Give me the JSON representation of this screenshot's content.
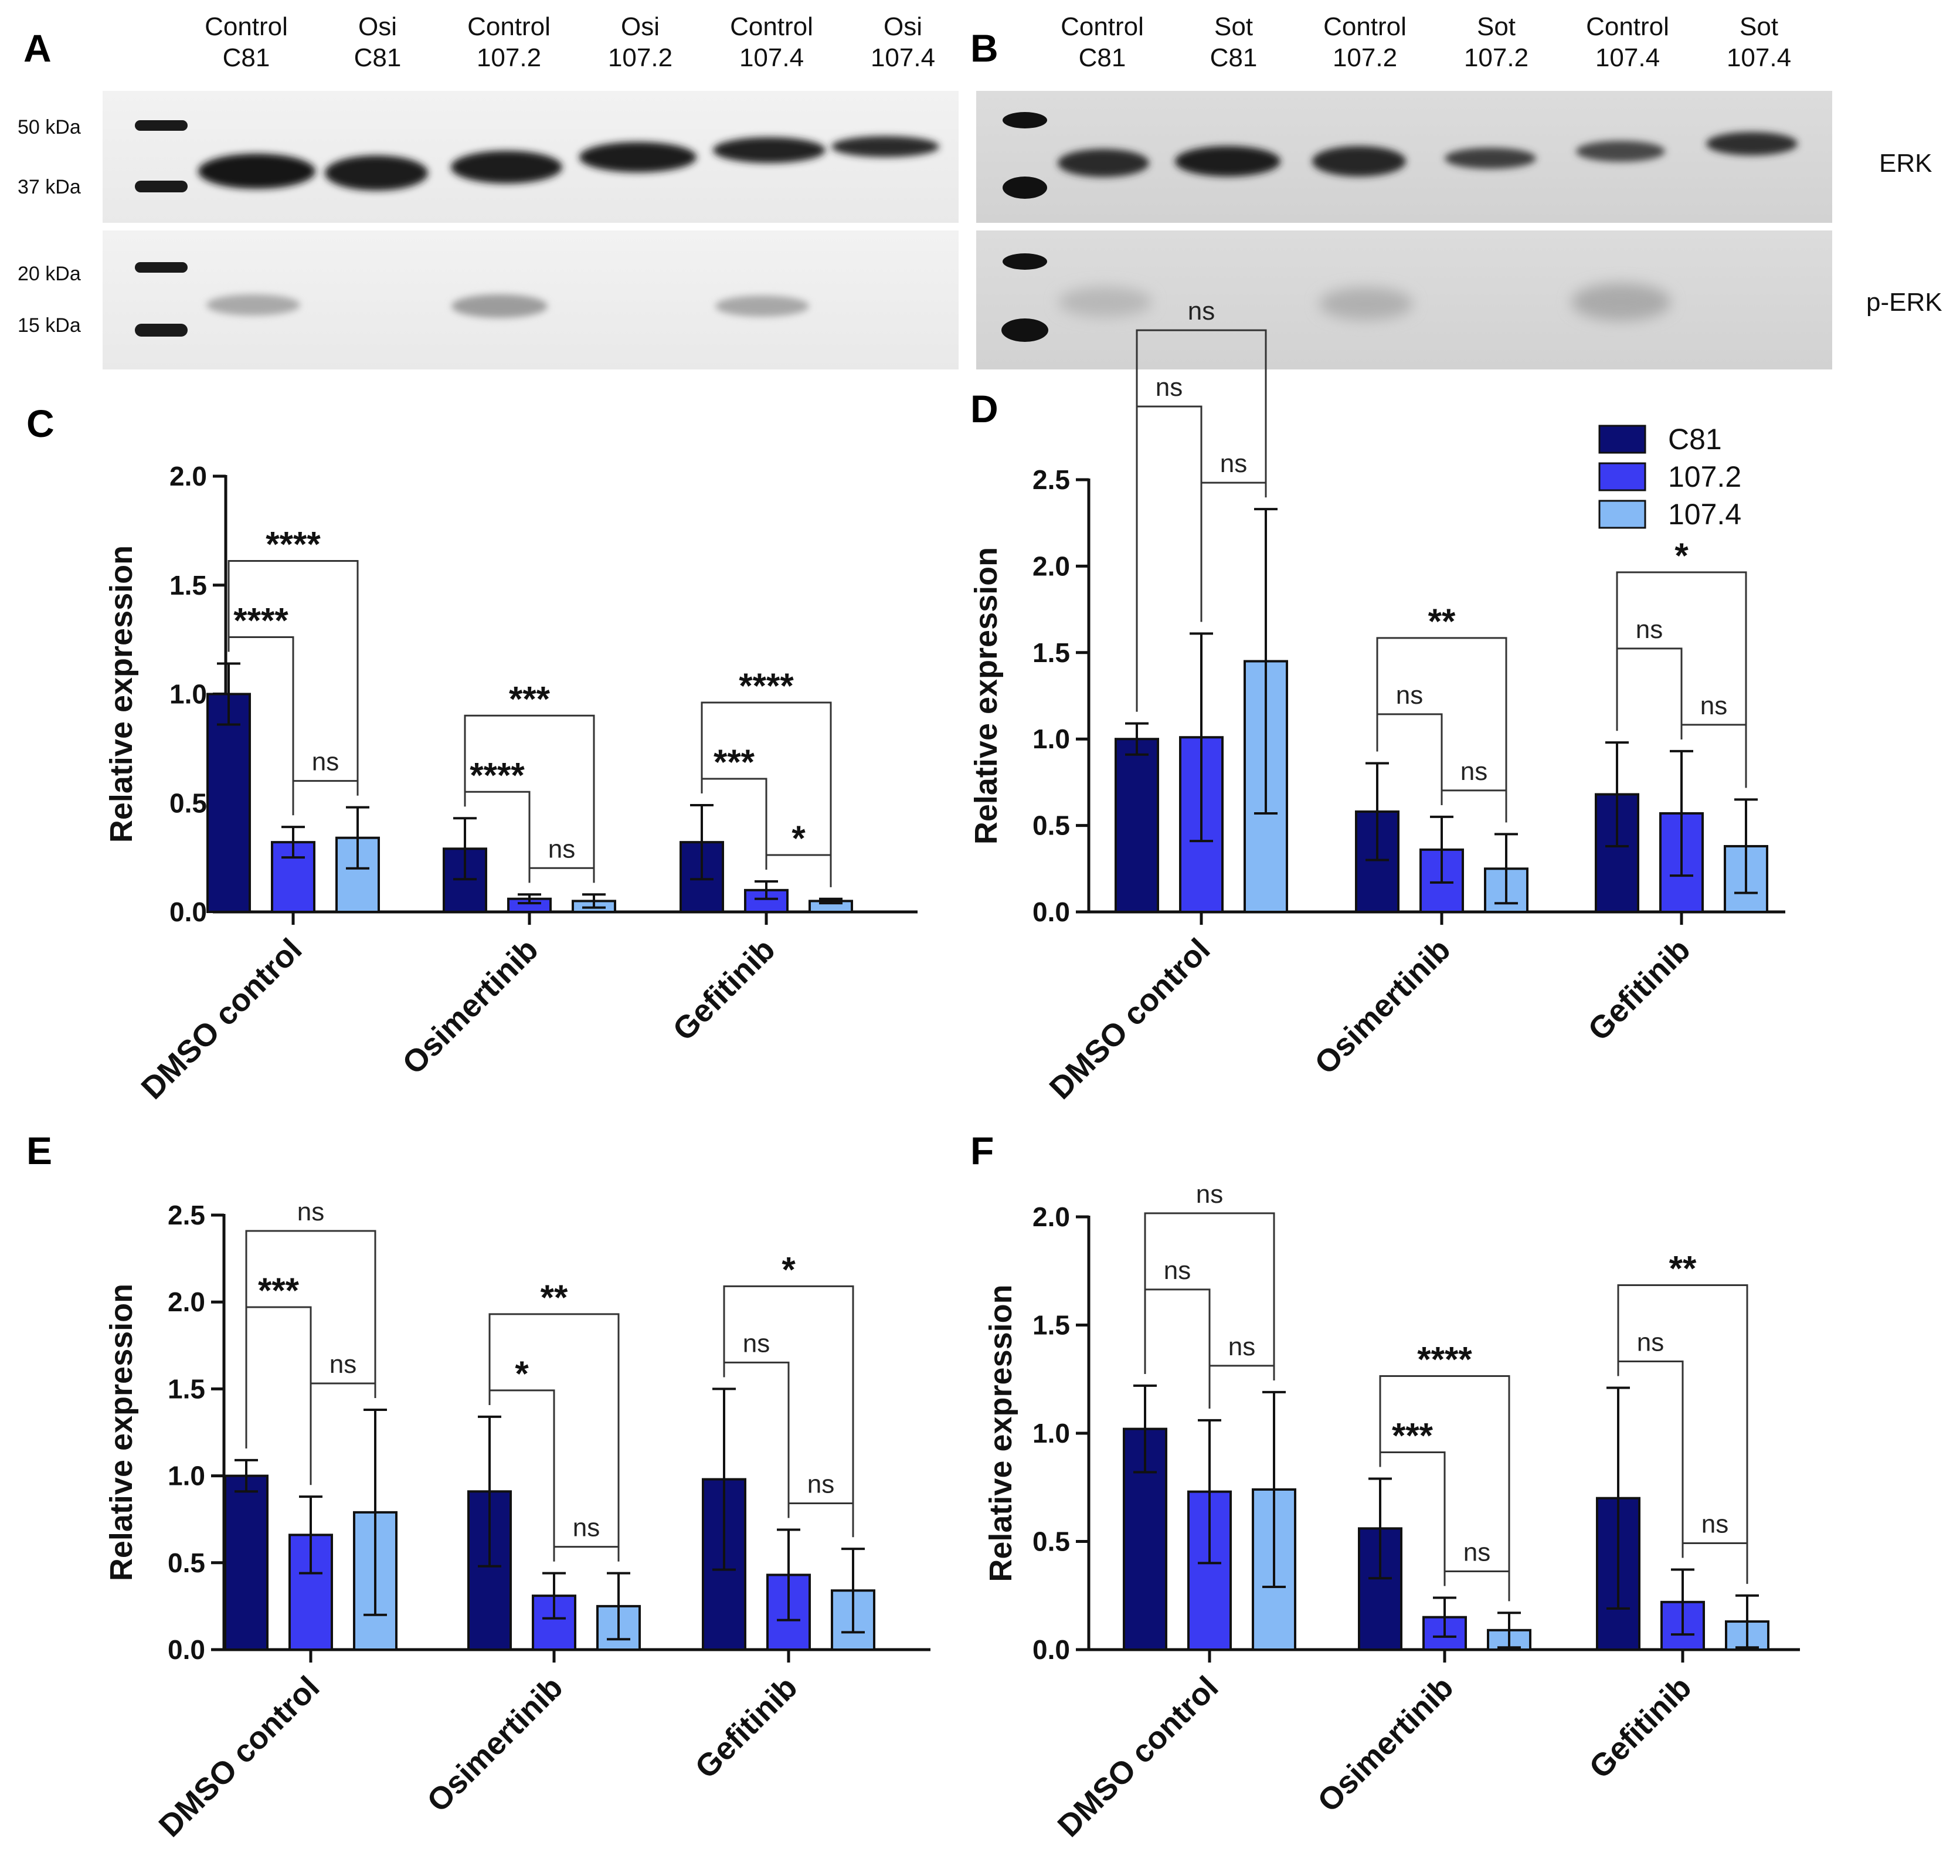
{
  "blots": [
    {
      "label": "A",
      "lanes": [
        [
          "Control",
          "C81"
        ],
        [
          "Osi",
          "C81"
        ],
        [
          "Control",
          "107.2"
        ],
        [
          "Osi",
          "107.2"
        ],
        [
          "Control",
          "107.4"
        ],
        [
          "Osi",
          "107.4"
        ]
      ],
      "markers_top": [
        "50 kDa",
        "37 kDa"
      ],
      "markers_bottom": [
        "20 kDa",
        "15 kDa"
      ]
    },
    {
      "label": "B",
      "lanes": [
        [
          "Control",
          "C81"
        ],
        [
          "Sot",
          "C81"
        ],
        [
          "Control",
          "107.2"
        ],
        [
          "Sot",
          "107.2"
        ],
        [
          "Control",
          "107.4"
        ],
        [
          "Sot",
          "107.4"
        ]
      ],
      "proteins": [
        "ERK",
        "p-ERK"
      ]
    }
  ],
  "legend": {
    "entries": [
      "C81",
      "107.2",
      "107.4"
    ],
    "colors": [
      "#0b0e73",
      "#3b3bf2",
      "#85b9f5"
    ]
  },
  "chart_data": [
    {
      "panel": "C",
      "type": "bar",
      "ylabel": "Relative expression",
      "ylim": [
        0,
        2.0
      ],
      "yticks": [
        "0.0",
        "0.5",
        "1.0",
        "1.5",
        "2.0"
      ],
      "categories": [
        "DMSO control",
        "Osimertinib",
        "Gefitinib"
      ],
      "series": [
        {
          "name": "C81",
          "values": [
            1.0,
            0.29,
            0.32
          ],
          "errors": [
            0.14,
            0.14,
            0.17
          ]
        },
        {
          "name": "107.2",
          "values": [
            0.32,
            0.06,
            0.1
          ],
          "errors": [
            0.07,
            0.02,
            0.04
          ]
        },
        {
          "name": "107.4",
          "values": [
            0.34,
            0.05,
            0.05
          ],
          "errors": [
            0.14,
            0.03,
            0.01
          ]
        }
      ],
      "significance": [
        {
          "group": 0,
          "pairs": [
            [
              0,
              1,
              "****"
            ],
            [
              0,
              2,
              "****"
            ],
            [
              1,
              2,
              "ns"
            ]
          ]
        },
        {
          "group": 1,
          "pairs": [
            [
              0,
              1,
              "****"
            ],
            [
              0,
              2,
              "***"
            ],
            [
              1,
              2,
              "ns"
            ]
          ]
        },
        {
          "group": 2,
          "pairs": [
            [
              0,
              1,
              "***"
            ],
            [
              0,
              2,
              "****"
            ],
            [
              1,
              2,
              "*"
            ]
          ]
        }
      ]
    },
    {
      "panel": "D",
      "type": "bar",
      "ylabel": "Relative expression",
      "ylim": [
        0,
        2.5
      ],
      "yticks": [
        "0.0",
        "0.5",
        "1.0",
        "1.5",
        "2.0",
        "2.5"
      ],
      "categories": [
        "DMSO control",
        "Osimertinib",
        "Gefitinib"
      ],
      "series": [
        {
          "name": "C81",
          "values": [
            1.0,
            0.58,
            0.68
          ],
          "errors": [
            0.09,
            0.28,
            0.3
          ]
        },
        {
          "name": "107.2",
          "values": [
            1.01,
            0.36,
            0.57
          ],
          "errors": [
            0.6,
            0.19,
            0.36
          ]
        },
        {
          "name": "107.4",
          "values": [
            1.45,
            0.25,
            0.38
          ],
          "errors": [
            0.88,
            0.2,
            0.27
          ]
        }
      ],
      "significance": [
        {
          "group": 0,
          "pairs": [
            [
              0,
              1,
              "ns"
            ],
            [
              0,
              2,
              "ns"
            ],
            [
              1,
              2,
              "ns"
            ]
          ]
        },
        {
          "group": 1,
          "pairs": [
            [
              0,
              1,
              "ns"
            ],
            [
              0,
              2,
              "**"
            ],
            [
              1,
              2,
              "ns"
            ]
          ]
        },
        {
          "group": 2,
          "pairs": [
            [
              0,
              1,
              "ns"
            ],
            [
              0,
              2,
              "*"
            ],
            [
              1,
              2,
              "ns"
            ]
          ]
        }
      ]
    },
    {
      "panel": "E",
      "type": "bar",
      "ylabel": "Relative expression",
      "ylim": [
        0,
        2.5
      ],
      "yticks": [
        "0.0",
        "0.5",
        "1.0",
        "1.5",
        "2.0",
        "2.5"
      ],
      "categories": [
        "DMSO control",
        "Osimertinib",
        "Gefitinib"
      ],
      "series": [
        {
          "name": "C81",
          "values": [
            1.0,
            0.91,
            0.98
          ],
          "errors": [
            0.09,
            0.43,
            0.52
          ]
        },
        {
          "name": "107.2",
          "values": [
            0.66,
            0.31,
            0.43
          ],
          "errors": [
            0.22,
            0.13,
            0.26
          ]
        },
        {
          "name": "107.4",
          "values": [
            0.79,
            0.25,
            0.34
          ],
          "errors": [
            0.59,
            0.19,
            0.24
          ]
        }
      ],
      "significance": [
        {
          "group": 0,
          "pairs": [
            [
              0,
              1,
              "***"
            ],
            [
              0,
              2,
              "ns"
            ],
            [
              1,
              2,
              "ns"
            ]
          ]
        },
        {
          "group": 1,
          "pairs": [
            [
              0,
              1,
              "*"
            ],
            [
              0,
              2,
              "**"
            ],
            [
              1,
              2,
              "ns"
            ]
          ]
        },
        {
          "group": 2,
          "pairs": [
            [
              0,
              1,
              "ns"
            ],
            [
              0,
              2,
              "*"
            ],
            [
              1,
              2,
              "ns"
            ]
          ]
        }
      ]
    },
    {
      "panel": "F",
      "type": "bar",
      "ylabel": "Relative expression",
      "ylim": [
        0,
        2.0
      ],
      "yticks": [
        "0.0",
        "0.5",
        "1.0",
        "1.5",
        "2.0"
      ],
      "categories": [
        "DMSO control",
        "Osimertinib",
        "Gefitinib"
      ],
      "series": [
        {
          "name": "C81",
          "values": [
            1.02,
            0.56,
            0.7
          ],
          "errors": [
            0.2,
            0.23,
            0.51
          ]
        },
        {
          "name": "107.2",
          "values": [
            0.73,
            0.15,
            0.22
          ],
          "errors": [
            0.33,
            0.09,
            0.15
          ]
        },
        {
          "name": "107.4",
          "values": [
            0.74,
            0.09,
            0.13
          ],
          "errors": [
            0.45,
            0.08,
            0.12
          ]
        }
      ],
      "significance": [
        {
          "group": 0,
          "pairs": [
            [
              0,
              1,
              "ns"
            ],
            [
              0,
              2,
              "ns"
            ],
            [
              1,
              2,
              "ns"
            ]
          ]
        },
        {
          "group": 1,
          "pairs": [
            [
              0,
              1,
              "***"
            ],
            [
              0,
              2,
              "****"
            ],
            [
              1,
              2,
              "ns"
            ]
          ]
        },
        {
          "group": 2,
          "pairs": [
            [
              0,
              1,
              "ns"
            ],
            [
              0,
              2,
              "**"
            ],
            [
              1,
              2,
              "ns"
            ]
          ]
        }
      ]
    }
  ]
}
